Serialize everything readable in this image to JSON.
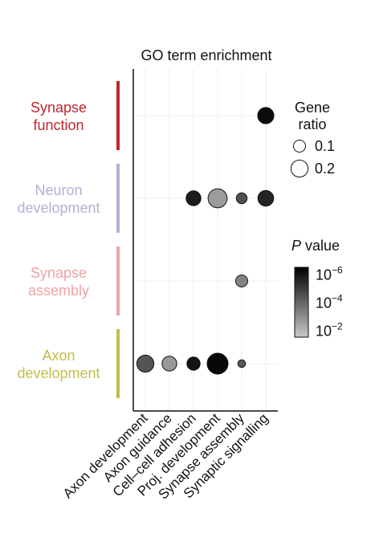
{
  "chart_data": {
    "type": "scatter",
    "title": "GO term enrichment",
    "x_categories": [
      "Axon development",
      "Axon guidance",
      "Cell–cell adhesion",
      "Proj. development",
      "Synapse assembly",
      "Synaptic signalling"
    ],
    "row_groups": [
      {
        "label_lines": [
          "Synapse",
          "function"
        ],
        "color": "#c0262d"
      },
      {
        "label_lines": [
          "Neuron",
          "development"
        ],
        "color": "#b7aed3"
      },
      {
        "label_lines": [
          "Synapse",
          "assembly"
        ],
        "color": "#f0a3a6"
      },
      {
        "label_lines": [
          "Axon",
          "development"
        ],
        "color": "#c2bd4a"
      }
    ],
    "points": [
      {
        "row": "Synapse function",
        "x": "Synaptic signalling",
        "gene_ratio": 0.18,
        "p_exp": -6.2
      },
      {
        "row": "Neuron development",
        "x": "Cell–cell adhesion",
        "gene_ratio": 0.15,
        "p_exp": -5.8
      },
      {
        "row": "Neuron development",
        "x": "Proj. development",
        "gene_ratio": 0.25,
        "p_exp": -2.6
      },
      {
        "row": "Neuron development",
        "x": "Synapse assembly",
        "gene_ratio": 0.08,
        "p_exp": -4.5
      },
      {
        "row": "Neuron development",
        "x": "Synaptic signalling",
        "gene_ratio": 0.17,
        "p_exp": -5.6
      },
      {
        "row": "Synapse assembly",
        "x": "Synapse assembly",
        "gene_ratio": 0.1,
        "p_exp": -3.2
      },
      {
        "row": "Axon development",
        "x": "Axon development",
        "gene_ratio": 0.2,
        "p_exp": -4.4
      },
      {
        "row": "Axon development",
        "x": "Axon guidance",
        "gene_ratio": 0.15,
        "p_exp": -2.7
      },
      {
        "row": "Axon development",
        "x": "Cell–cell adhesion",
        "gene_ratio": 0.12,
        "p_exp": -6.0
      },
      {
        "row": "Axon development",
        "x": "Proj. development",
        "gene_ratio": 0.3,
        "p_exp": -6.3
      },
      {
        "row": "Axon development",
        "x": "Synapse assembly",
        "gene_ratio": 0.04,
        "p_exp": -4.3
      }
    ],
    "size_legend": {
      "title_lines": [
        "Gene",
        "ratio"
      ],
      "entries": [
        {
          "label": "0.1",
          "value": 0.1
        },
        {
          "label": "0.2",
          "value": 0.2
        }
      ]
    },
    "color_legend": {
      "title_italic": "P",
      "title_rest": " value",
      "scale": "log",
      "ticks": [
        {
          "base": "10",
          "exp": "−6",
          "value": -6
        },
        {
          "base": "10",
          "exp": "−4",
          "value": -4
        },
        {
          "base": "10",
          "exp": "−2",
          "value": -2
        }
      ],
      "range": [
        -6.5,
        -1.5
      ]
    },
    "grid": true
  }
}
